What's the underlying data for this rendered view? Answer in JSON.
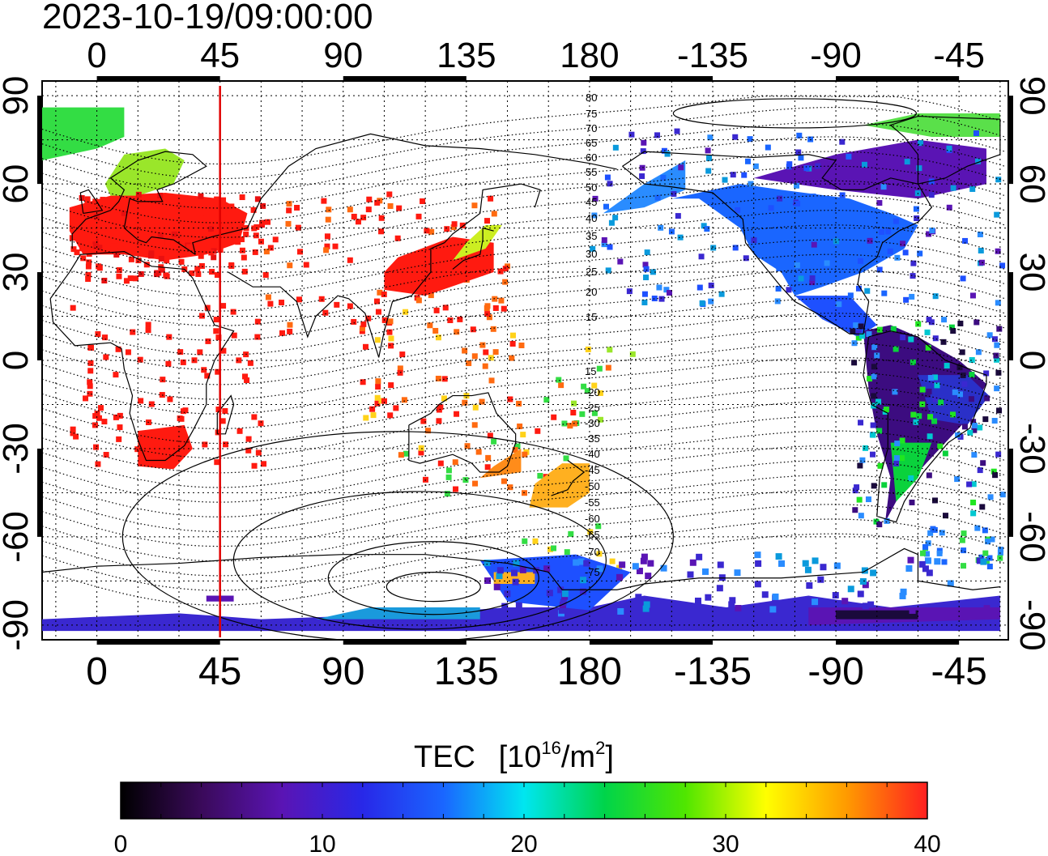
{
  "timestamp": "2023-10-19/09:00:00",
  "map": {
    "lon_labels": [
      "0",
      "45",
      "90",
      "135",
      "180",
      "-135",
      "-90",
      "-45"
    ],
    "lon_values": [
      0,
      45,
      90,
      135,
      180,
      225,
      270,
      315
    ],
    "lat_labels": [
      "90",
      "60",
      "30",
      "0",
      "-30",
      "-60",
      "-90"
    ],
    "lat_values": [
      90,
      60,
      30,
      0,
      -30,
      -60,
      -90
    ],
    "lon_range": [
      -20,
      333
    ],
    "lat_range": [
      -95,
      95
    ],
    "grid": "on (dotted, 15 degree spacing)",
    "marker_longitude": 45,
    "marker_color": "#e00000",
    "contour_labels": {
      "north": [
        "80",
        "75",
        "70",
        "65",
        "60",
        "55",
        "50",
        "45",
        "40",
        "35",
        "30",
        "25",
        "20",
        "15"
      ],
      "south": [
        "15",
        "-20",
        "-25",
        "-30",
        "-35",
        "-40",
        "-45",
        "-50",
        "-55",
        "-60",
        "-65",
        "-70",
        "-75"
      ]
    },
    "tec_regions": [
      {
        "name": "europe",
        "tec": 40,
        "color": "#ff1a10"
      },
      {
        "name": "arctic-europe",
        "tec": 24,
        "color": "#33dd44"
      },
      {
        "name": "east-asia",
        "tec": 38,
        "color": "#ff2a10"
      },
      {
        "name": "japan",
        "tec": 28,
        "color": "#ccee22"
      },
      {
        "name": "australia",
        "tec": 34,
        "color": "#ff8c1a"
      },
      {
        "name": "new-zealand",
        "tec": 32,
        "color": "#ffb020"
      },
      {
        "name": "north-america",
        "tec": 12,
        "color": "#1a66ff"
      },
      {
        "name": "canada-arctic",
        "tec": 8,
        "color": "#5a14b4"
      },
      {
        "name": "south-america",
        "tec": 6,
        "color": "#3c0c80"
      },
      {
        "name": "antarctica",
        "tec": 9,
        "color": "#3a28d0"
      }
    ]
  },
  "colorbar": {
    "title": "TEC",
    "unit_prefix": "[10",
    "unit_exp": "16",
    "unit_mid": "/m",
    "unit_sq": "2",
    "unit_suffix": "]",
    "ticks": [
      "0",
      "10",
      "20",
      "30",
      "40"
    ],
    "min": 0,
    "max": 40,
    "colors": [
      "#000000",
      "#3a0a5a",
      "#5a14b4",
      "#2828e8",
      "#1a66ff",
      "#00e6f0",
      "#00d44a",
      "#50e600",
      "#ffff00",
      "#ff9a00",
      "#ff2020"
    ]
  }
}
